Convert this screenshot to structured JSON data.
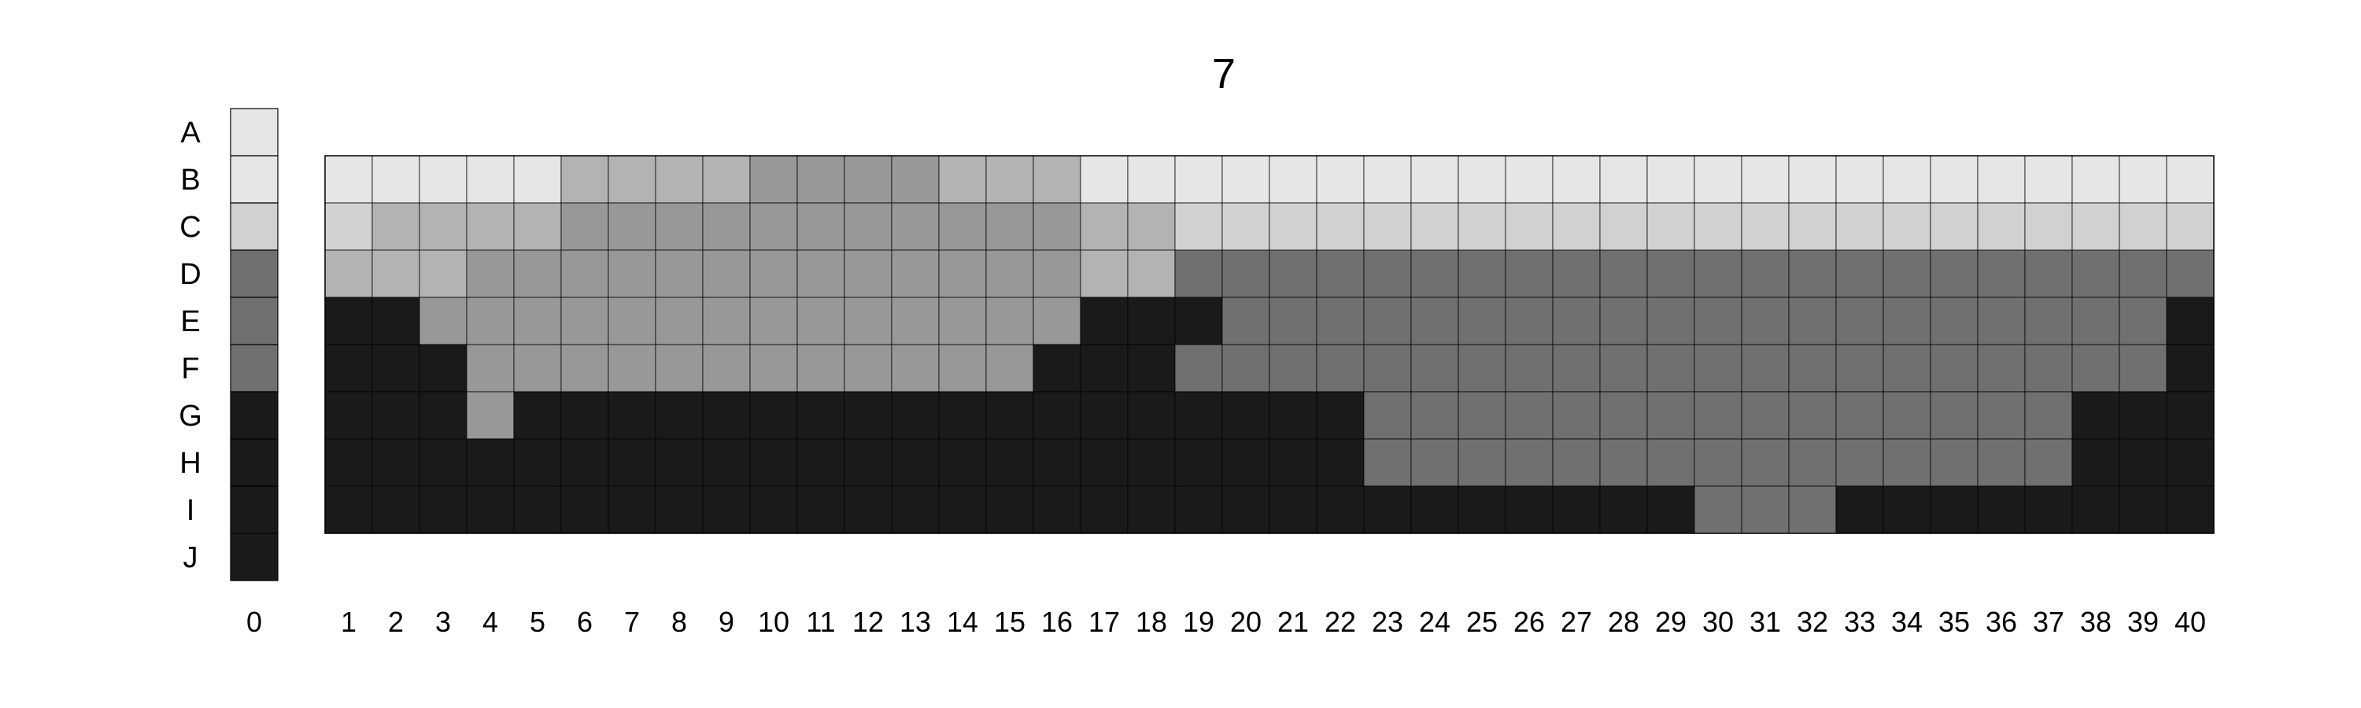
{
  "chart_data": {
    "type": "heatmap",
    "title": "7",
    "row_labels": [
      "A",
      "B",
      "C",
      "D",
      "E",
      "F",
      "G",
      "H",
      "I",
      "J"
    ],
    "reference_column": {
      "label": "0",
      "levels": [
        6,
        6,
        5,
        1,
        1,
        1,
        0,
        0,
        0,
        0
      ]
    },
    "column_labels": [
      "1",
      "2",
      "3",
      "4",
      "5",
      "6",
      "7",
      "8",
      "9",
      "10",
      "11",
      "12",
      "13",
      "14",
      "15",
      "16",
      "17",
      "18",
      "19",
      "20",
      "21",
      "22",
      "23",
      "24",
      "25",
      "26",
      "27",
      "28",
      "29",
      "30",
      "31",
      "32",
      "33",
      "34",
      "35",
      "36",
      "37",
      "38",
      "39",
      "40"
    ],
    "grid_rows": [
      "B",
      "C",
      "D",
      "E",
      "F",
      "G",
      "H",
      "I"
    ],
    "grid_levels": [
      [
        6,
        6,
        6,
        6,
        6,
        4,
        4,
        4,
        4,
        3,
        3,
        3,
        3,
        4,
        4,
        4,
        6,
        6,
        6,
        6,
        6,
        6,
        6,
        6,
        6,
        6,
        6,
        6,
        6,
        6,
        6,
        6,
        6,
        6,
        6,
        6,
        6,
        6,
        6,
        6
      ],
      [
        5,
        4,
        4,
        4,
        4,
        3,
        3,
        3,
        3,
        3,
        3,
        3,
        3,
        3,
        3,
        3,
        4,
        4,
        5,
        5,
        5,
        5,
        5,
        5,
        5,
        5,
        5,
        5,
        5,
        5,
        5,
        5,
        5,
        5,
        5,
        5,
        5,
        5,
        5,
        5
      ],
      [
        4,
        4,
        4,
        3,
        3,
        3,
        3,
        3,
        3,
        3,
        3,
        3,
        3,
        3,
        3,
        3,
        4,
        4,
        1,
        1,
        1,
        1,
        1,
        1,
        1,
        1,
        1,
        1,
        1,
        1,
        1,
        1,
        1,
        1,
        1,
        1,
        1,
        1,
        1,
        1
      ],
      [
        0,
        0,
        3,
        3,
        3,
        3,
        3,
        3,
        3,
        3,
        3,
        3,
        3,
        3,
        3,
        3,
        0,
        0,
        0,
        1,
        1,
        1,
        1,
        1,
        1,
        1,
        1,
        1,
        1,
        1,
        1,
        1,
        1,
        1,
        1,
        1,
        1,
        1,
        1,
        0
      ],
      [
        0,
        0,
        0,
        3,
        3,
        3,
        3,
        3,
        3,
        3,
        3,
        3,
        3,
        3,
        3,
        0,
        0,
        0,
        1,
        1,
        1,
        1,
        1,
        1,
        1,
        1,
        1,
        1,
        1,
        1,
        1,
        1,
        1,
        1,
        1,
        1,
        1,
        1,
        1,
        0
      ],
      [
        0,
        0,
        0,
        3,
        0,
        0,
        0,
        0,
        0,
        0,
        0,
        0,
        0,
        0,
        0,
        0,
        0,
        0,
        0,
        0,
        0,
        0,
        1,
        1,
        1,
        1,
        1,
        1,
        1,
        1,
        1,
        1,
        1,
        1,
        1,
        1,
        1,
        0,
        0,
        0
      ],
      [
        0,
        0,
        0,
        0,
        0,
        0,
        0,
        0,
        0,
        0,
        0,
        0,
        0,
        0,
        0,
        0,
        0,
        0,
        0,
        0,
        0,
        0,
        1,
        1,
        1,
        1,
        1,
        1,
        1,
        1,
        1,
        1,
        1,
        1,
        1,
        1,
        1,
        0,
        0,
        0
      ],
      [
        0,
        0,
        0,
        0,
        0,
        0,
        0,
        0,
        0,
        0,
        0,
        0,
        0,
        0,
        0,
        0,
        0,
        0,
        0,
        0,
        0,
        0,
        0,
        0,
        0,
        0,
        0,
        0,
        0,
        1,
        1,
        1,
        0,
        0,
        0,
        0,
        0,
        0,
        0,
        0
      ]
    ],
    "palette": [
      "#1a1a1a",
      "#707070",
      "#808080",
      "#989898",
      "#b3b3b3",
      "#d1d1d1",
      "#e6e6e6"
    ]
  }
}
